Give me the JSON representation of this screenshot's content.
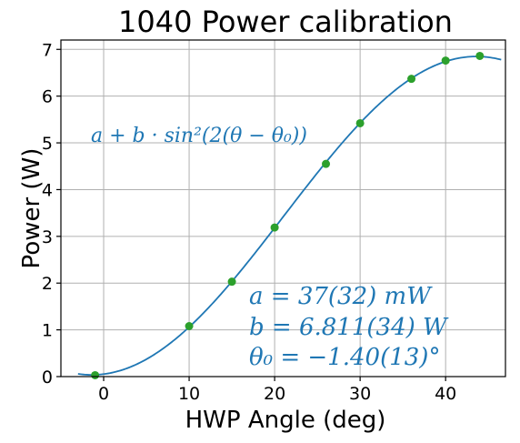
{
  "chart_data": {
    "type": "scatter",
    "title": "1040 Power calibration",
    "xlabel": "HWP Angle (deg)",
    "ylabel": "Power (W)",
    "xlim": [
      -5,
      47
    ],
    "ylim": [
      0,
      7.2
    ],
    "xticks": [
      0,
      10,
      20,
      30,
      40
    ],
    "yticks": [
      0,
      1,
      2,
      3,
      4,
      5,
      6,
      7
    ],
    "grid": true,
    "series": [
      {
        "kind": "points",
        "color": "#2ca02c",
        "x": [
          -1,
          10,
          15,
          20,
          26,
          30,
          36,
          40,
          44
        ],
        "y": [
          0.03,
          1.08,
          2.03,
          3.19,
          4.55,
          5.42,
          6.37,
          6.76,
          6.86
        ]
      },
      {
        "kind": "fit-line",
        "color": "#1f77b4",
        "x_range": [
          -3,
          46.5
        ],
        "params": {
          "a": 0.037,
          "b": 6.811,
          "theta0": -1.4
        }
      }
    ],
    "annotations": {
      "formula": "a + b · sin²(2(θ − θ₀))",
      "a_text": "a = 37(32) mW",
      "b_text": "b = 6.811(34) W",
      "theta_text": "θ₀ = −1.40(13)°",
      "color": "#1f77b4"
    }
  }
}
